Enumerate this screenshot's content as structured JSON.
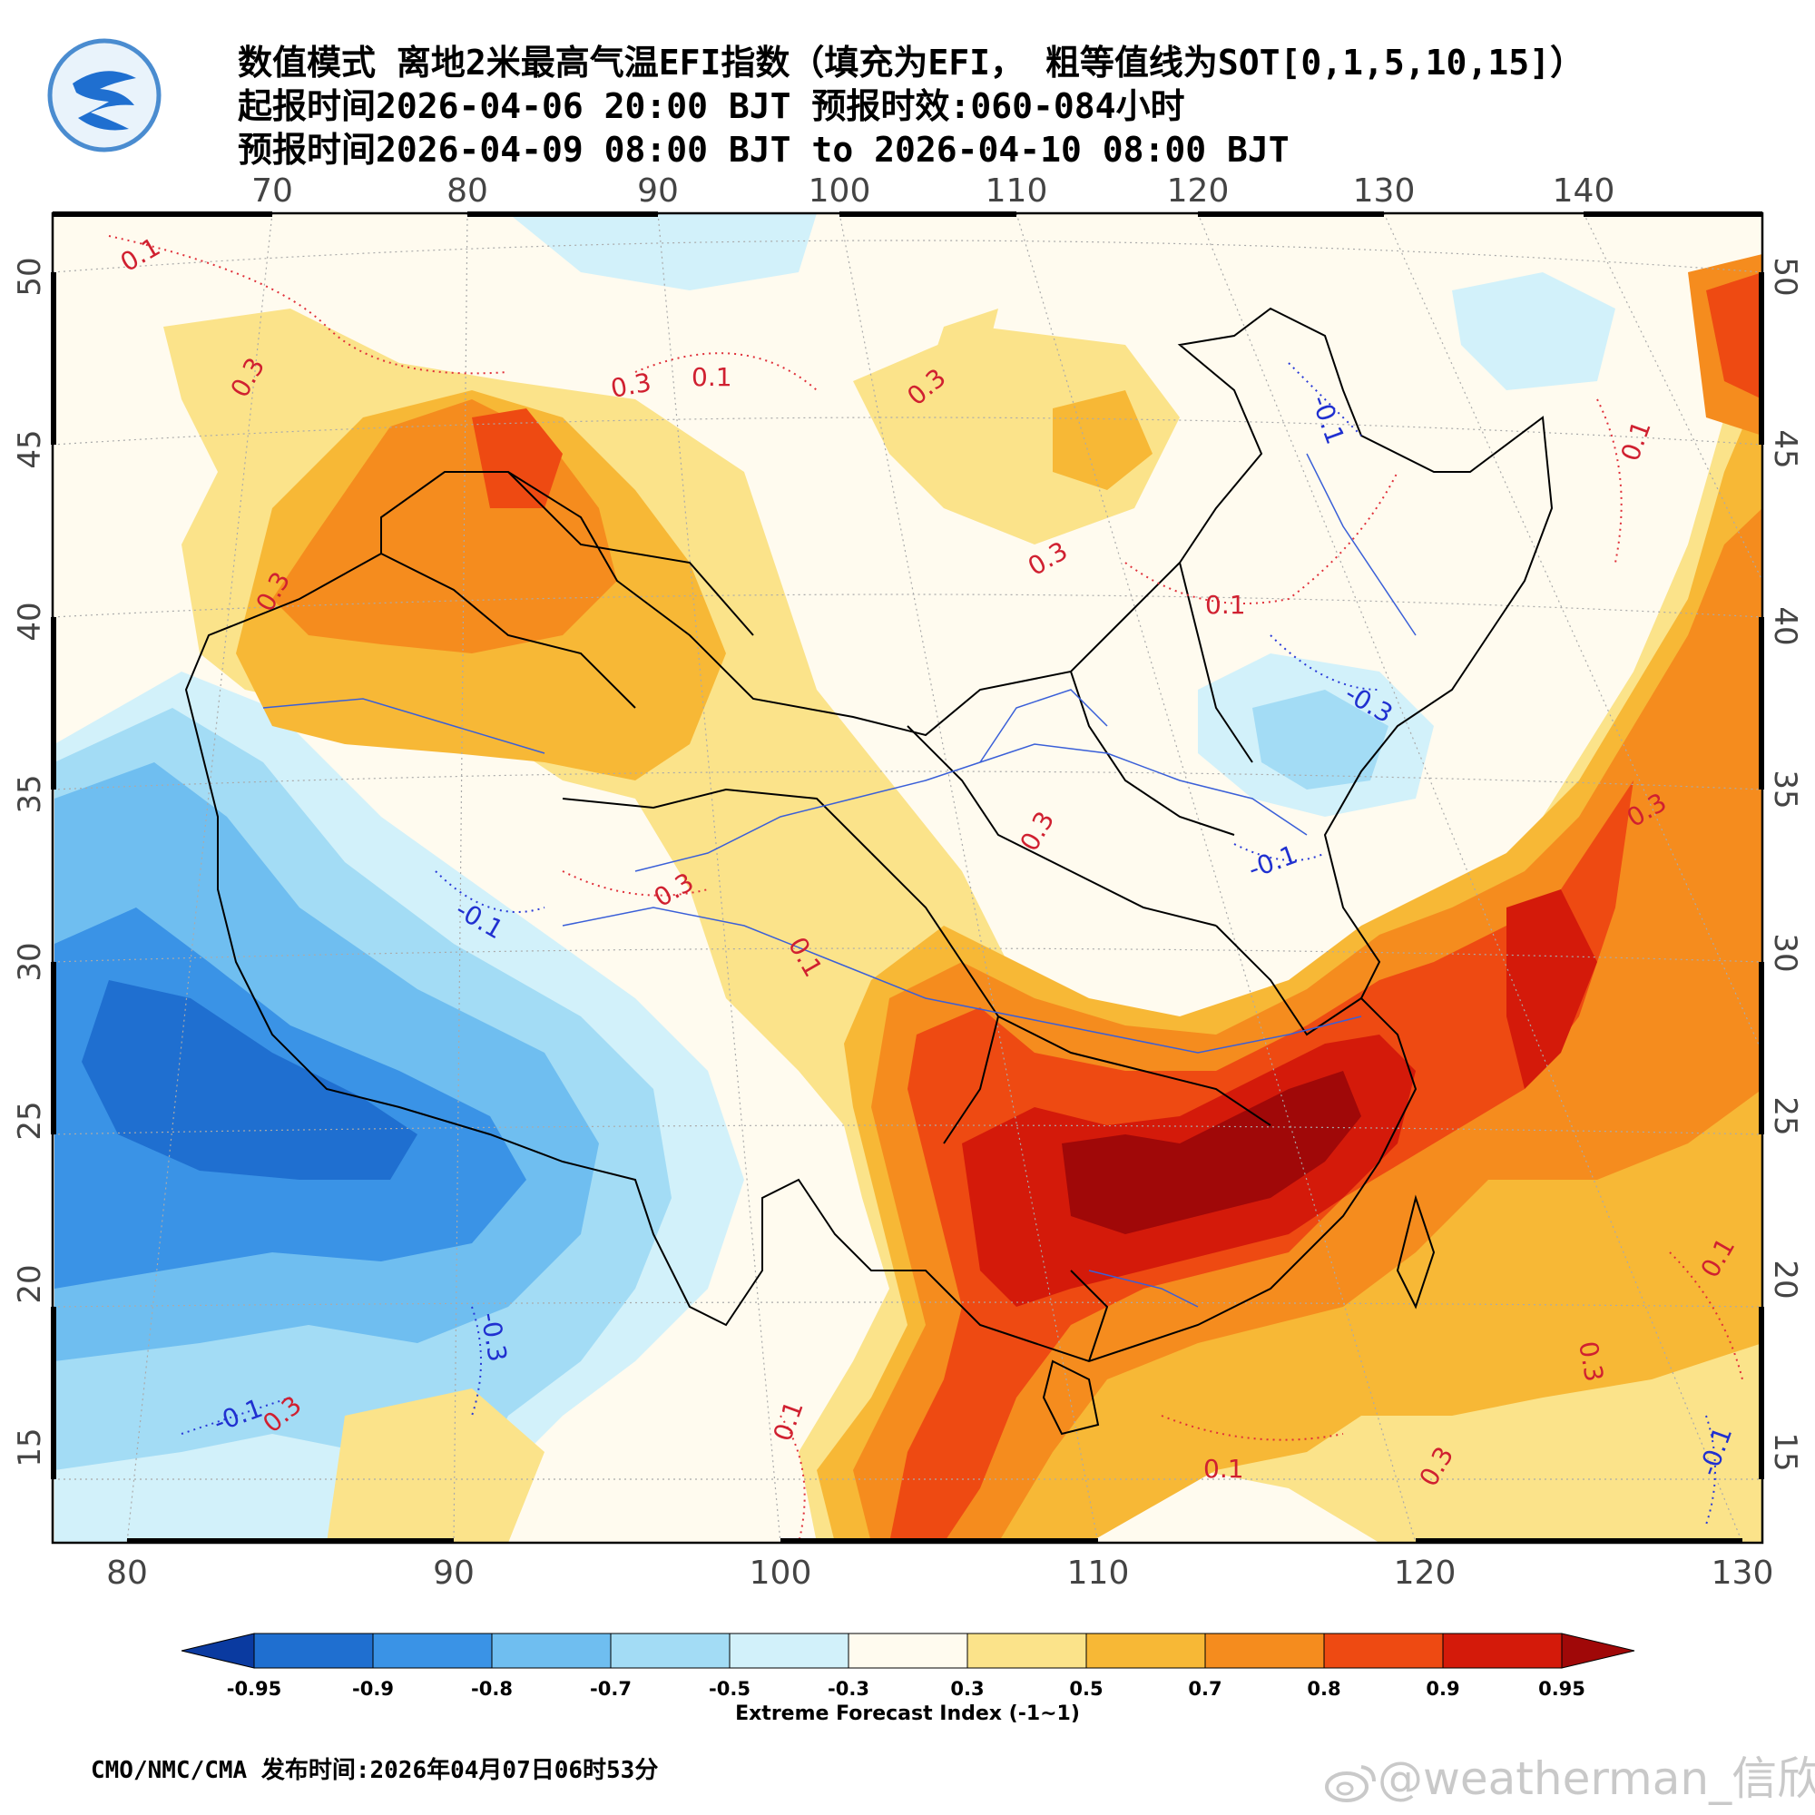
{
  "header": {
    "title_line1": "数值模式 离地2米最高气温EFI指数（填充为EFI， 粗等值线为SOT[0,1,5,10,15]）",
    "title_line2": "起报时间2026-04-06 20:00 BJT 预报时效:060-084小时",
    "title_line3": "预报时间2026-04-09 08:00 BJT to 2026-04-10 08:00 BJT"
  },
  "map": {
    "top_lon_labels": [
      "70",
      "80",
      "90",
      "100",
      "110",
      "120",
      "130",
      "140"
    ],
    "bottom_lon_labels": [
      "80",
      "90",
      "100",
      "110",
      "120",
      "130"
    ],
    "left_lat_labels": [
      "50",
      "45",
      "40",
      "35",
      "30",
      "25",
      "20",
      "15"
    ],
    "right_lat_labels": [
      "50",
      "45",
      "40",
      "35",
      "30",
      "25",
      "20",
      "15"
    ],
    "contour_labels": [
      "0.1",
      "0.3",
      "0.3",
      "0.1",
      "0.3",
      "0.3",
      "0.1",
      "-0.1",
      "0.3",
      "-0.3",
      "-0.1",
      "0.3",
      "-0.1",
      "0.1",
      "0.3",
      "0.3",
      "0.1",
      "-0.3",
      "-0.1",
      "0.3",
      "0.1",
      "0.1",
      "-0.1",
      "0.3",
      "0.3",
      "0.1"
    ],
    "colors": {
      "c_m095": "#0a3aa0",
      "c_m09": "#1f6fd0",
      "c_m08": "#3a93e6",
      "c_m07": "#6fbef0",
      "c_m05": "#a3dcf5",
      "c_m03": "#d2f1fa",
      "c_neutral": "#fffbef",
      "c_03": "#fbe38a",
      "c_05": "#f7b836",
      "c_07": "#f58c1e",
      "c_08": "#ee4a12",
      "c_09": "#d41a0a",
      "c_095": "#a00808"
    }
  },
  "colorbar": {
    "labels": [
      "-0.95",
      "-0.9",
      "-0.8",
      "-0.7",
      "-0.5",
      "-0.3",
      "0.3",
      "0.5",
      "0.7",
      "0.8",
      "0.9",
      "0.95"
    ],
    "colors": [
      "#1f6fd0",
      "#3a93e6",
      "#6fbef0",
      "#a3dcf5",
      "#d2f1fa",
      "#fffbef",
      "#fbe38a",
      "#f7b836",
      "#f58c1e",
      "#ee4a12",
      "#d41a0a"
    ],
    "low_color": "#0a3aa0",
    "high_color": "#a00808",
    "title": "Extreme Forecast Index (-1~1)"
  },
  "footer": {
    "text": "CMO/NMC/CMA 发布时间:2026年04月07日06时53分"
  },
  "watermark": {
    "text": "@weatherman_信欣",
    "icon": "weibo-icon"
  },
  "logo": {
    "icon": "cma-logo-icon"
  }
}
